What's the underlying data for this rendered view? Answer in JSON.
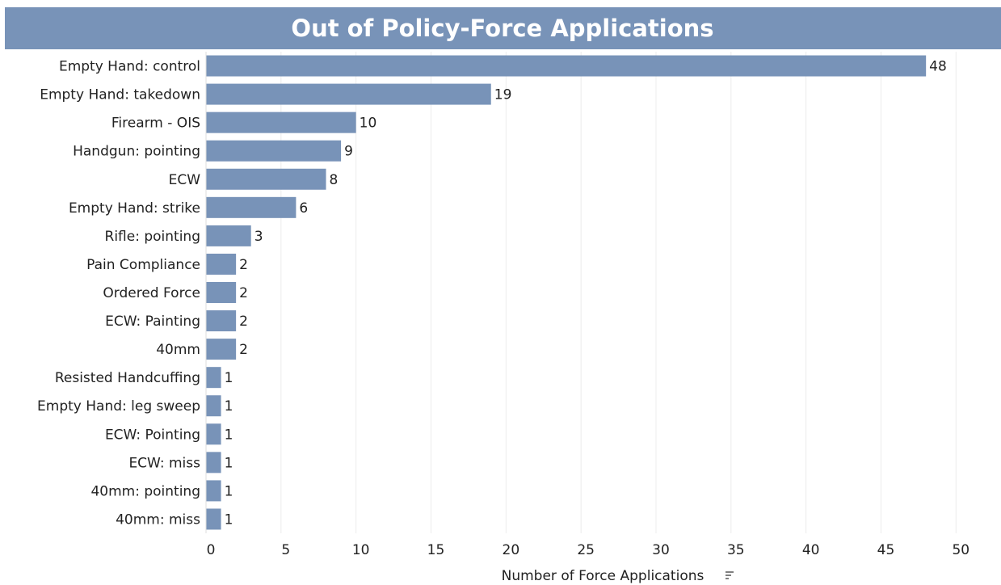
{
  "chart_data": {
    "type": "hbar",
    "title": "Out of Policy-Force Applications",
    "categories": [
      "Empty Hand: control",
      "Empty Hand: takedown",
      "Firearm - OIS",
      "Handgun: pointing",
      "ECW",
      "Empty Hand: strike",
      "Rifle: pointing",
      "Pain Compliance",
      "Ordered Force",
      "ECW: Painting",
      "40mm",
      "Resisted Handcuffing",
      "Empty Hand: leg sweep",
      "ECW: Pointing",
      "ECW: miss",
      "40mm: pointing",
      "40mm: miss"
    ],
    "values": [
      48,
      19,
      10,
      9,
      8,
      6,
      3,
      2,
      2,
      2,
      2,
      1,
      1,
      1,
      1,
      1,
      1
    ],
    "color": "#7893b8",
    "x_label": "Number of Force Applications",
    "xlim": [
      0,
      53
    ],
    "xticks": [
      0,
      5,
      10,
      15,
      20,
      25,
      30,
      35,
      40,
      45,
      50
    ],
    "grid": true
  }
}
